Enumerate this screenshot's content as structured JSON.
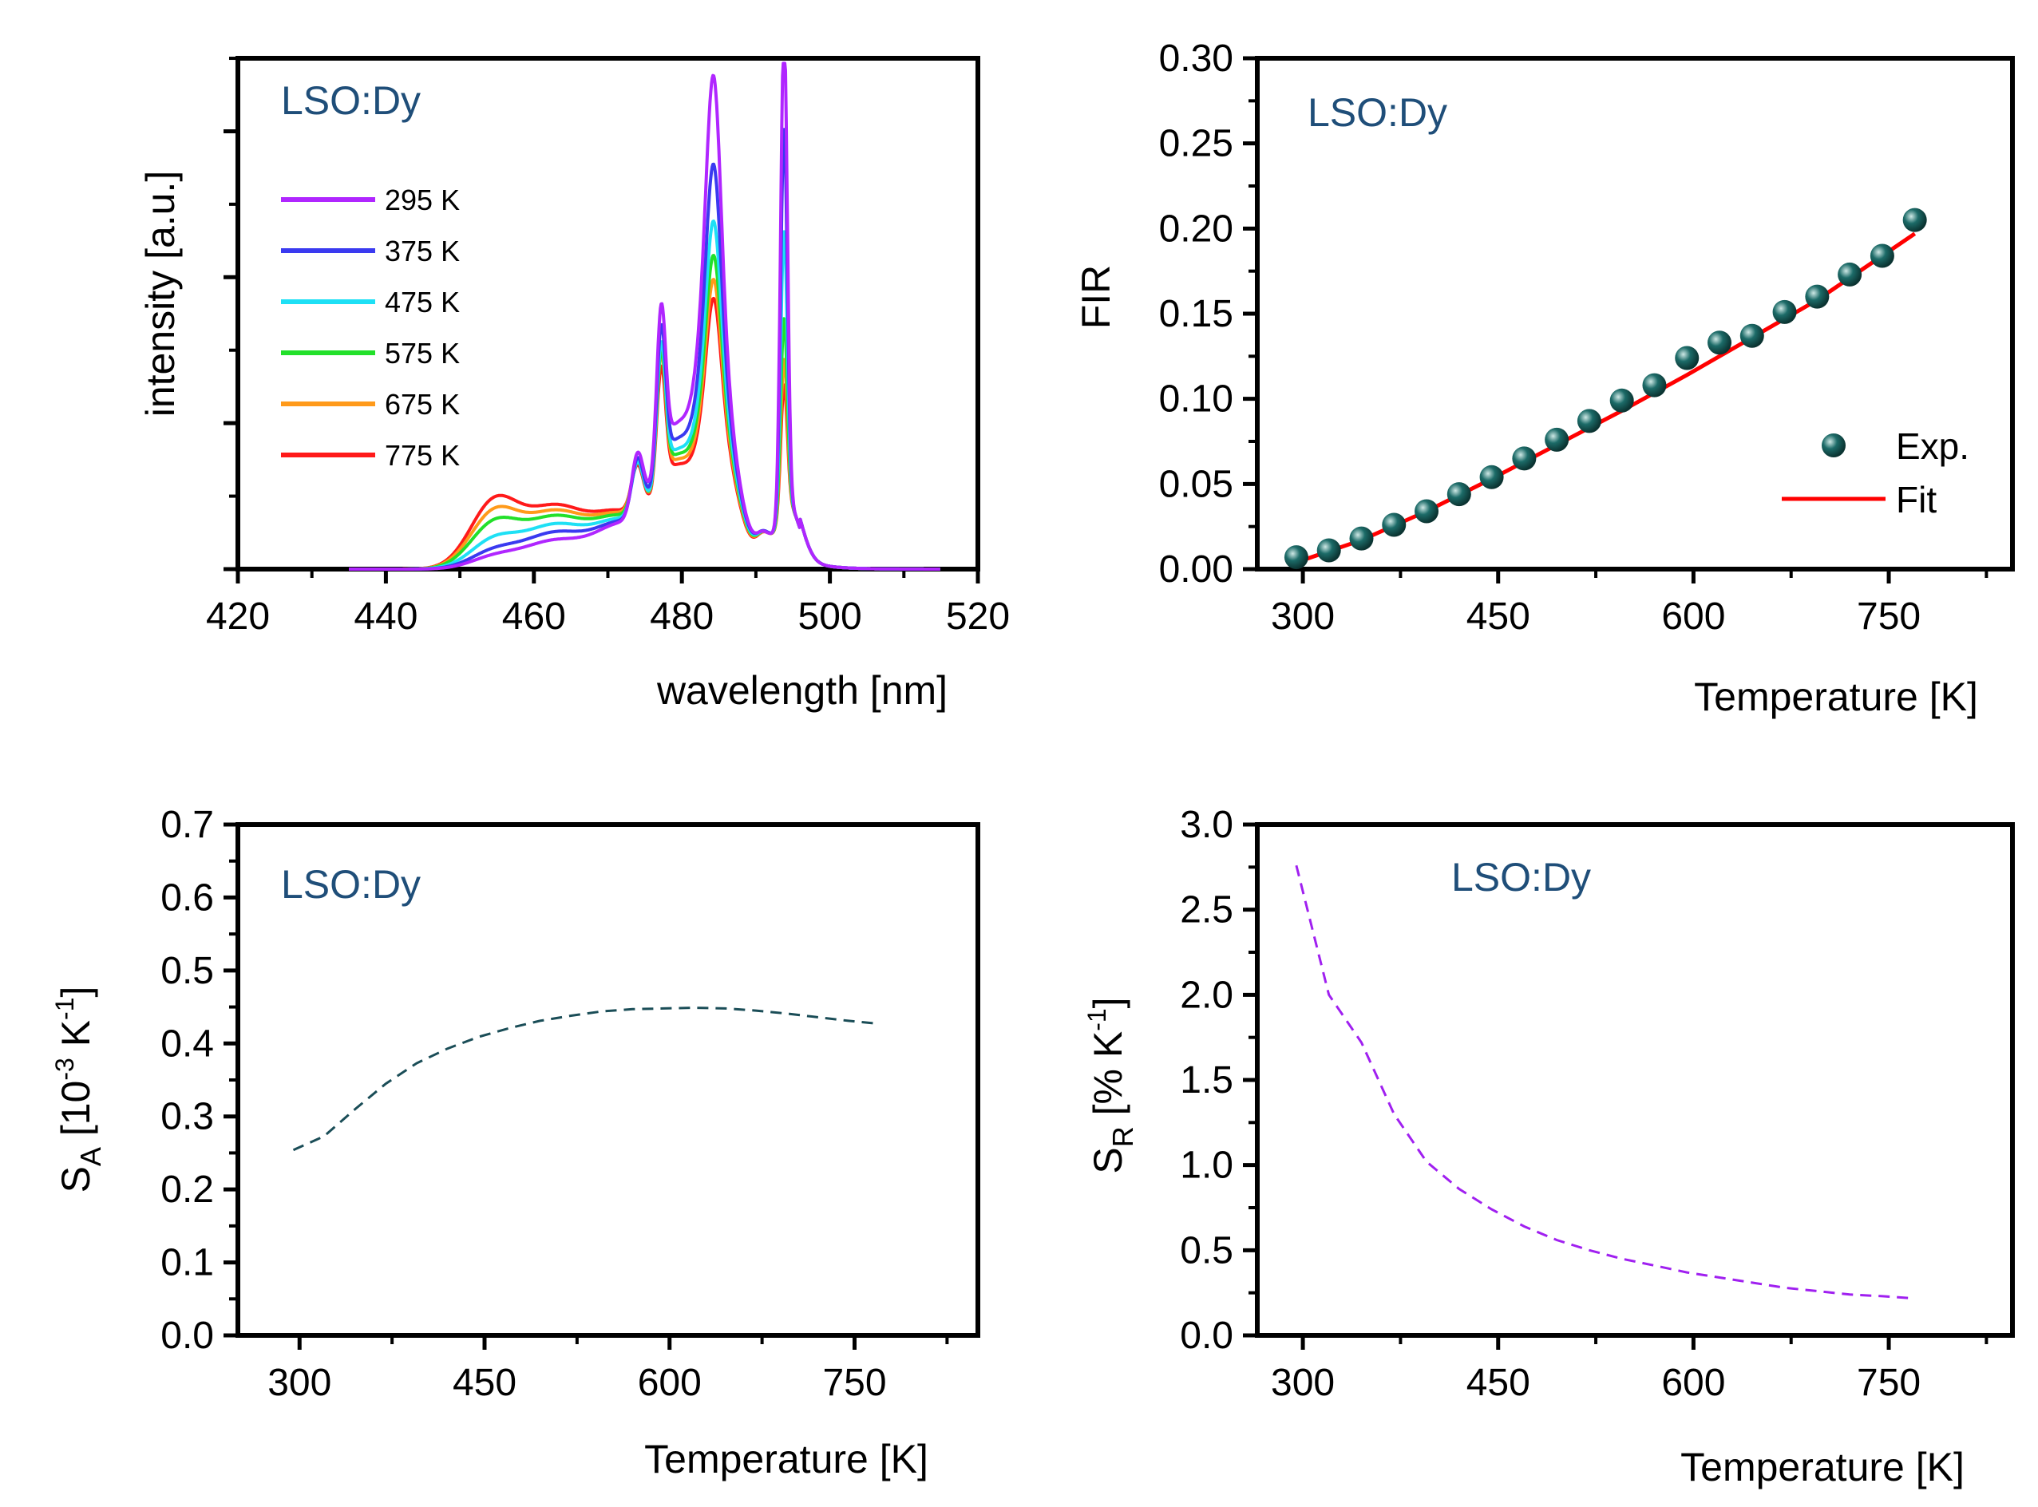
{
  "colors": {
    "annotation": "#1f4e79",
    "fit": "#ff0000",
    "marker": "#1c6b68",
    "sa_line": "#1a4d57",
    "sr_line": "#a020f0"
  },
  "chart_data": [
    {
      "id": "spectra",
      "type": "line",
      "annotation": "LSO:Dy",
      "xlabel": "wavelength [nm]",
      "ylabel": "intensity [a.u.]",
      "xlim": [
        420,
        520
      ],
      "ylim": [
        0,
        1.0
      ],
      "xticks": [
        420,
        440,
        460,
        480,
        500,
        520
      ],
      "xtick_labels": [
        "420",
        "440",
        "460",
        "480",
        "500",
        "520"
      ],
      "yticks": [
        0.0,
        0.2857,
        0.5714,
        0.8571
      ],
      "series": [
        {
          "name": "295 K",
          "color": "#b026ff",
          "peaks": [
            0.02,
            0.055,
            0.3,
            0.76,
            0.27,
            0.58,
            0.048,
            0.95
          ]
        },
        {
          "name": "375 K",
          "color": "#3a3af0",
          "peaks": [
            0.03,
            0.07,
            0.28,
            0.6,
            0.24,
            0.55,
            0.05,
            0.75
          ]
        },
        {
          "name": "475 K",
          "color": "#1ee0f5",
          "peaks": [
            0.05,
            0.085,
            0.26,
            0.5,
            0.22,
            0.52,
            0.05,
            0.55
          ]
        },
        {
          "name": "575 K",
          "color": "#22e02a",
          "peaks": [
            0.08,
            0.1,
            0.25,
            0.44,
            0.21,
            0.5,
            0.05,
            0.38
          ]
        },
        {
          "name": "675 K",
          "color": "#ff9a1a",
          "peaks": [
            0.1,
            0.11,
            0.25,
            0.4,
            0.2,
            0.48,
            0.05,
            0.3
          ]
        },
        {
          "name": "775 K",
          "color": "#ff1a1a",
          "peaks": [
            0.12,
            0.12,
            0.23,
            0.37,
            0.19,
            0.46,
            0.05,
            0.25
          ]
        }
      ]
    },
    {
      "id": "fir",
      "type": "scatter",
      "annotation": "LSO:Dy",
      "xlabel": "Temperature [K]",
      "ylabel": "FIR",
      "xlim": [
        265,
        845
      ],
      "ylim": [
        0,
        0.3
      ],
      "xticks": [
        300,
        450,
        600,
        750
      ],
      "xtick_labels": [
        "300",
        "450",
        "600",
        "750"
      ],
      "yticks": [
        0.0,
        0.05,
        0.1,
        0.15,
        0.2,
        0.25,
        0.3
      ],
      "ytick_labels": [
        "0.00",
        "0.05",
        "0.10",
        "0.15",
        "0.20",
        "0.25",
        "0.30"
      ],
      "legend": {
        "exp": "Exp.",
        "fit": "Fit"
      },
      "series": [
        {
          "name": "Exp.",
          "x": [
            295,
            320,
            345,
            370,
            395,
            420,
            445,
            470,
            495,
            520,
            545,
            570,
            595,
            620,
            645,
            670,
            695,
            720,
            745,
            770
          ],
          "y": [
            0.007,
            0.011,
            0.018,
            0.026,
            0.034,
            0.044,
            0.054,
            0.065,
            0.076,
            0.087,
            0.099,
            0.108,
            0.124,
            0.133,
            0.137,
            0.151,
            0.16,
            0.173,
            0.184,
            0.205
          ]
        },
        {
          "name": "Fit",
          "x": [
            295,
            345,
            395,
            445,
            495,
            545,
            595,
            645,
            695,
            745,
            770
          ],
          "y": [
            0.004,
            0.017,
            0.034,
            0.053,
            0.073,
            0.093,
            0.114,
            0.136,
            0.158,
            0.184,
            0.197
          ]
        }
      ]
    },
    {
      "id": "sa",
      "type": "line",
      "annotation": "LSO:Dy",
      "xlabel": "Temperature [K]",
      "ylabel": "S_A [10^-3 K^-1]",
      "xlim": [
        250,
        850
      ],
      "ylim": [
        0,
        0.7
      ],
      "xticks": [
        300,
        450,
        600,
        750
      ],
      "xtick_labels": [
        "300",
        "450",
        "600",
        "750"
      ],
      "yticks": [
        0.0,
        0.1,
        0.2,
        0.3,
        0.4,
        0.5,
        0.6,
        0.7
      ],
      "ytick_labels": [
        "0.0",
        "0.1",
        "0.2",
        "0.3",
        "0.4",
        "0.5",
        "0.6",
        "0.7"
      ],
      "series": [
        {
          "name": "S_A",
          "x": [
            295,
            320,
            345,
            370,
            395,
            420,
            445,
            470,
            495,
            520,
            545,
            570,
            595,
            620,
            645,
            670,
            695,
            720,
            745,
            770
          ],
          "y": [
            0.254,
            0.273,
            0.31,
            0.345,
            0.373,
            0.393,
            0.409,
            0.421,
            0.431,
            0.438,
            0.444,
            0.447,
            0.448,
            0.449,
            0.448,
            0.445,
            0.441,
            0.436,
            0.431,
            0.427
          ]
        }
      ]
    },
    {
      "id": "sr",
      "type": "line",
      "annotation": "LSO:Dy",
      "xlabel": "Temperature [K]",
      "ylabel": "S_R [% K^-1]",
      "xlim": [
        265,
        845
      ],
      "ylim": [
        0,
        3.0
      ],
      "xticks": [
        300,
        450,
        600,
        750
      ],
      "xtick_labels": [
        "300",
        "450",
        "600",
        "750"
      ],
      "yticks": [
        0.0,
        0.5,
        1.0,
        1.5,
        2.0,
        2.5,
        3.0
      ],
      "ytick_labels": [
        "0.0",
        "0.5",
        "1.0",
        "1.5",
        "2.0",
        "2.5",
        "3.0"
      ],
      "series": [
        {
          "name": "S_R",
          "x": [
            295,
            320,
            345,
            370,
            395,
            420,
            445,
            470,
            495,
            520,
            545,
            570,
            595,
            620,
            645,
            670,
            695,
            720,
            745,
            765
          ],
          "y": [
            2.76,
            2.0,
            1.72,
            1.3,
            1.02,
            0.86,
            0.74,
            0.64,
            0.56,
            0.5,
            0.45,
            0.41,
            0.37,
            0.34,
            0.31,
            0.28,
            0.26,
            0.24,
            0.23,
            0.22
          ]
        }
      ]
    }
  ]
}
